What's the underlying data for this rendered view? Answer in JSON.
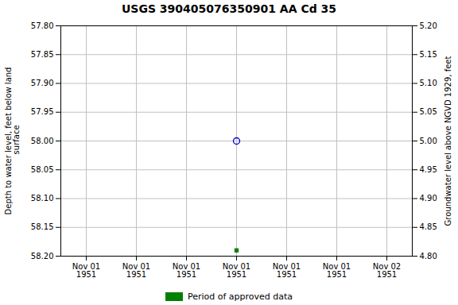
{
  "chart_data": {
    "type": "scatter",
    "title": "USGS 390405076350901 AA Cd  35",
    "ylabel": "Depth to water level, feet below land\n surface",
    "y2label": "Groundwater level above NGVD 1929, feet",
    "categories": [
      "Nov 01\n1951",
      "Nov 01\n1951",
      "Nov 01\n1951",
      "Nov 01\n1951",
      "Nov 01\n1951",
      "Nov 01\n1951",
      "Nov 02\n1951"
    ],
    "series": [
      {
        "color": "#0000cc",
        "marker": "circle",
        "values": [
          null,
          null,
          null,
          58.0,
          null,
          null,
          null
        ]
      },
      {
        "name": "Period of approved data",
        "color": "#008000",
        "marker": "square",
        "values": [
          null,
          null,
          null,
          58.19,
          null,
          null,
          null
        ]
      }
    ],
    "ylim": [
      58.2,
      57.8
    ],
    "yticks": [
      {
        "value": 57.8,
        "label": "57.80"
      },
      {
        "value": 57.85,
        "label": "57.85"
      },
      {
        "value": 57.9,
        "label": "57.90"
      },
      {
        "value": 57.95,
        "label": "57.95"
      },
      {
        "value": 58.0,
        "label": "58.00"
      },
      {
        "value": 58.05,
        "label": "58.05"
      },
      {
        "value": 58.1,
        "label": "58.10"
      },
      {
        "value": 58.15,
        "label": "58.15"
      },
      {
        "value": 58.2,
        "label": "58.20"
      }
    ],
    "y2lim": [
      4.8,
      5.2
    ],
    "y2ticks": [
      {
        "value": 4.8,
        "label": "4.80"
      },
      {
        "value": 4.85,
        "label": "4.85"
      },
      {
        "value": 4.9,
        "label": "4.90"
      },
      {
        "value": 4.95,
        "label": "4.95"
      },
      {
        "value": 5.0,
        "label": "5.00"
      },
      {
        "value": 5.05,
        "label": "5.05"
      },
      {
        "value": 5.1,
        "label": "5.10"
      },
      {
        "value": 5.15,
        "label": "5.15"
      },
      {
        "value": 5.2,
        "label": "5.20"
      }
    ],
    "grid": true,
    "legend": "bottom"
  }
}
